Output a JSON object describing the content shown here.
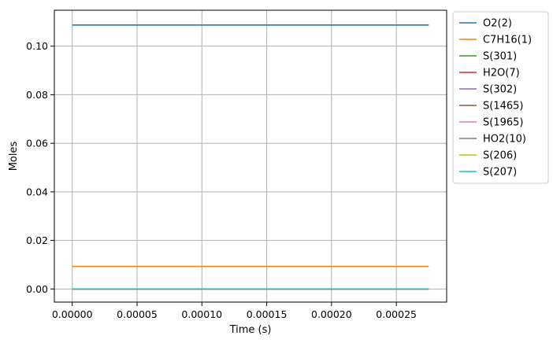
{
  "chart_data": {
    "type": "line",
    "xlabel": "Time  (s)",
    "ylabel": "Moles",
    "xlim": [
      -1.38e-05,
      0.0002888
    ],
    "ylim": [
      -0.0054,
      0.1148
    ],
    "x": [
      0.0,
      0.000275
    ],
    "xticks": [
      0.0,
      5e-05,
      0.0001,
      0.00015,
      0.0002,
      0.00025
    ],
    "xtick_labels": [
      "0.00000",
      "0.00005",
      "0.00010",
      "0.00015",
      "0.00020",
      "0.00025"
    ],
    "yticks": [
      0.0,
      0.02,
      0.04,
      0.06,
      0.08,
      0.1
    ],
    "ytick_labels": [
      "0.00",
      "0.02",
      "0.04",
      "0.06",
      "0.08",
      "0.10"
    ],
    "grid": true,
    "legend_position": "outside-right-top",
    "series": [
      {
        "name": "O2(2)",
        "color": "#1f77b4",
        "values": [
          0.1087,
          0.1087
        ]
      },
      {
        "name": "C7H16(1)",
        "color": "#ff7f0e",
        "values": [
          0.0093,
          0.0093
        ]
      },
      {
        "name": "S(301)",
        "color": "#2ca02c",
        "values": [
          0.0,
          0.0
        ]
      },
      {
        "name": "H2O(7)",
        "color": "#d62728",
        "values": [
          0.0,
          0.0
        ]
      },
      {
        "name": "S(302)",
        "color": "#9467bd",
        "values": [
          0.0,
          0.0
        ]
      },
      {
        "name": "S(1465)",
        "color": "#8c564b",
        "values": [
          0.0,
          0.0
        ]
      },
      {
        "name": "S(1965)",
        "color": "#e377c2",
        "values": [
          0.0,
          0.0
        ]
      },
      {
        "name": "HO2(10)",
        "color": "#7f7f7f",
        "values": [
          0.0,
          0.0
        ]
      },
      {
        "name": "S(206)",
        "color": "#bcbd22",
        "values": [
          0.0,
          0.0
        ]
      },
      {
        "name": "S(207)",
        "color": "#17becf",
        "values": [
          0.0,
          0.0
        ]
      }
    ]
  }
}
